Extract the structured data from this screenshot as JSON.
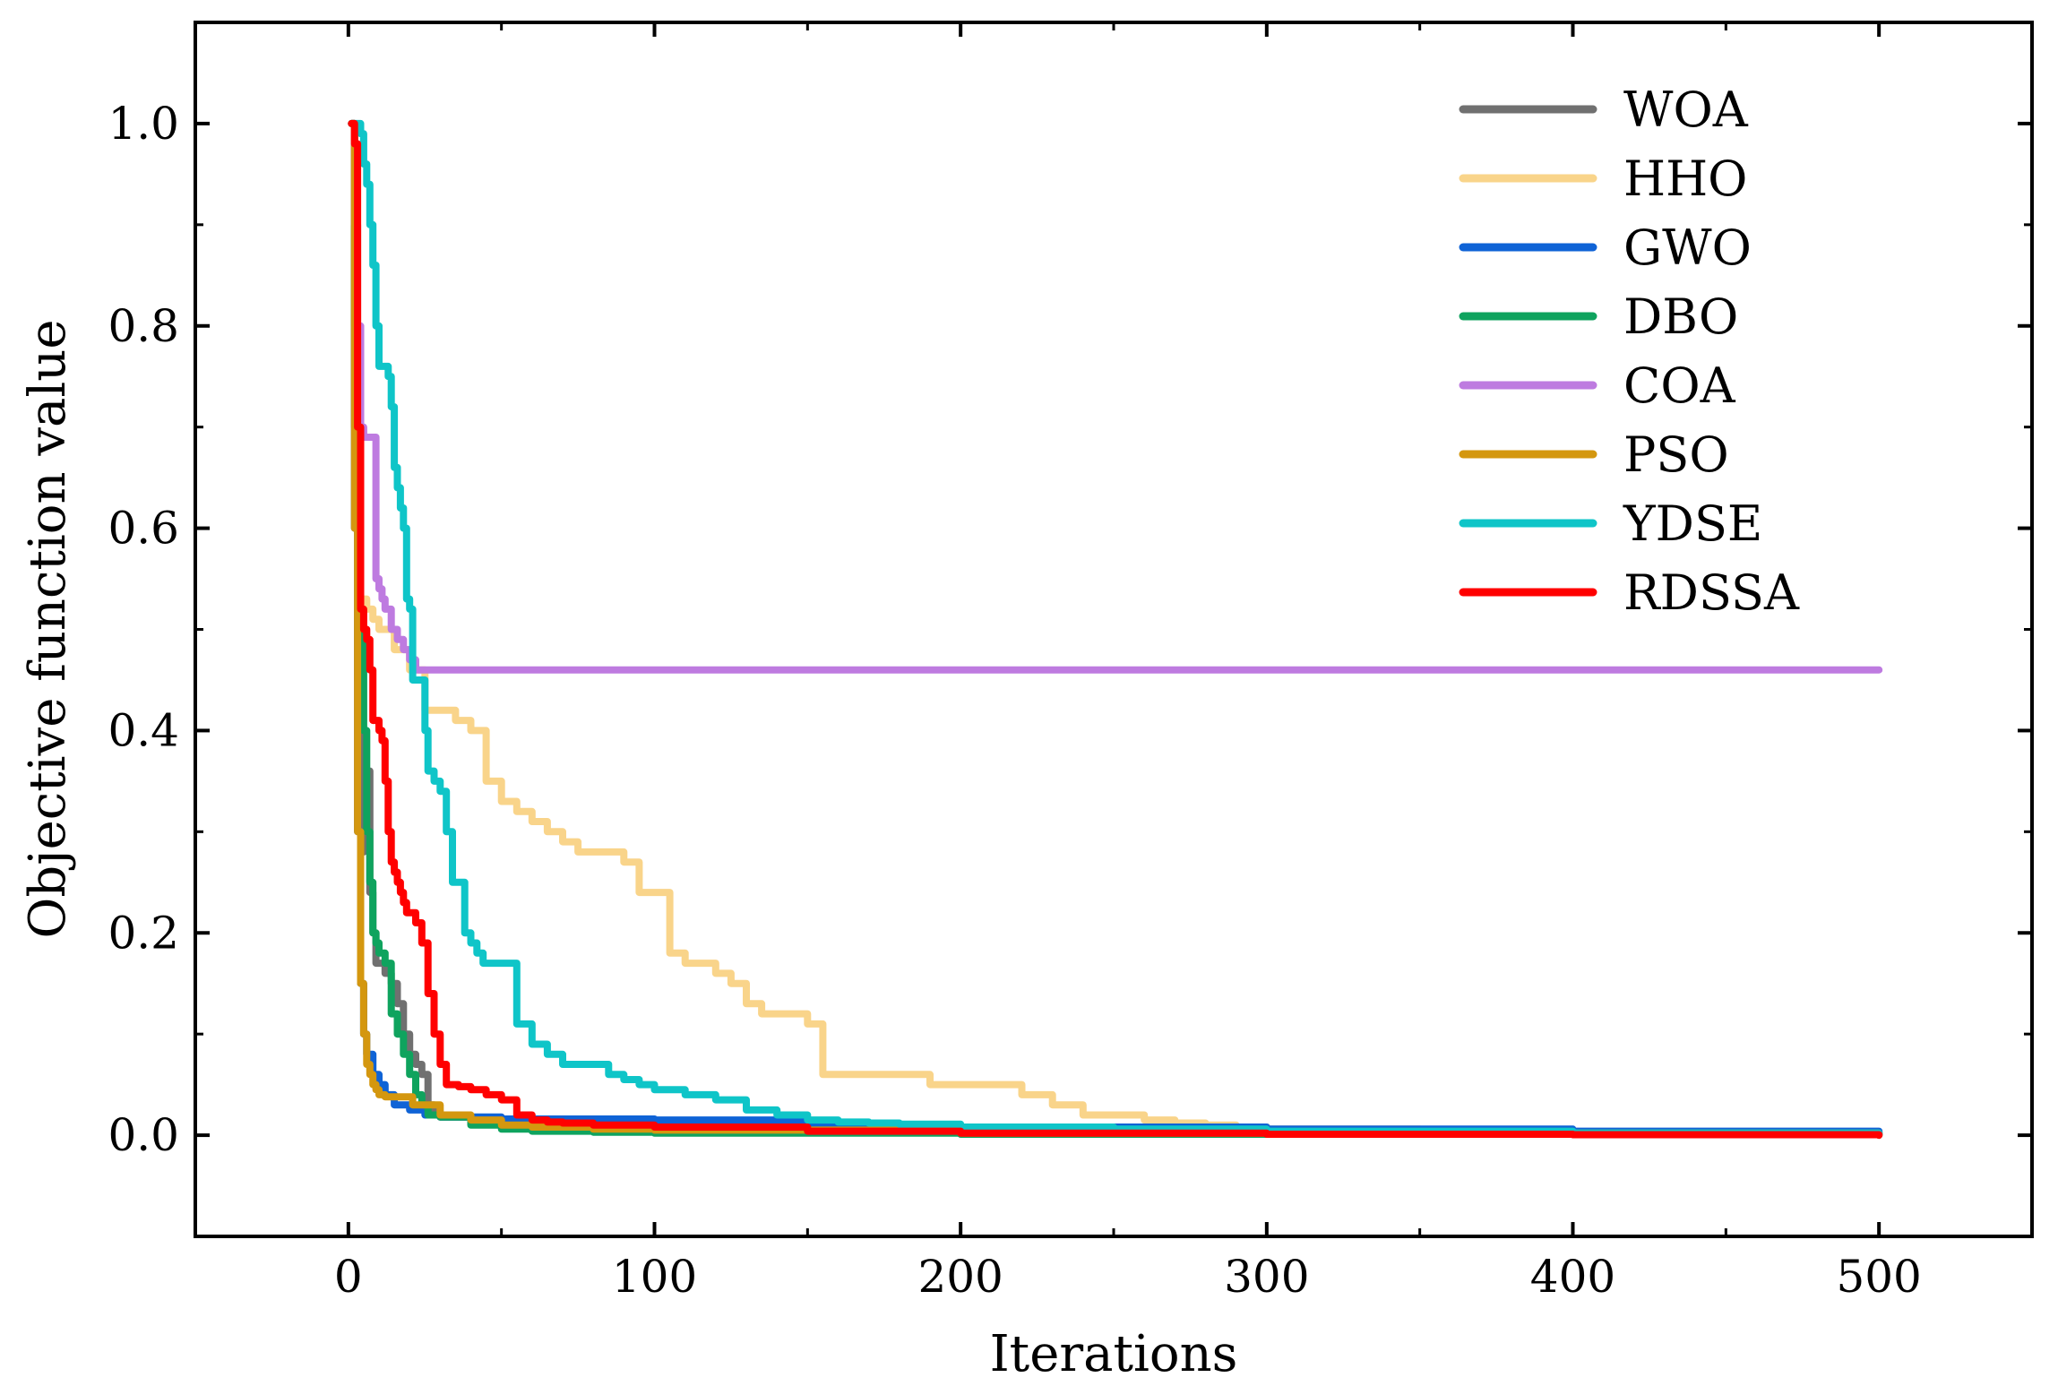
{
  "chart_data": {
    "type": "line",
    "title": "",
    "xlabel": "Iterations",
    "ylabel": "Objective function value",
    "xlim": [
      -50,
      550
    ],
    "ylim": [
      -0.1,
      1.1
    ],
    "xticks": [
      0,
      100,
      200,
      300,
      400,
      500
    ],
    "xtick_labels": [
      "0",
      "100",
      "200",
      "300",
      "400",
      "500"
    ],
    "yticks": [
      0.0,
      0.2,
      0.4,
      0.6,
      0.8,
      1.0
    ],
    "ytick_labels": [
      "0.0",
      "0.2",
      "0.4",
      "0.6",
      "0.8",
      "1.0"
    ],
    "grid": false,
    "legend_position": "top-right",
    "series": [
      {
        "name": "WOA",
        "color": "#707070",
        "x": [
          1,
          2,
          3,
          4,
          5,
          6,
          7,
          8,
          9,
          10,
          12,
          14,
          16,
          18,
          20,
          22,
          24,
          26,
          28,
          30,
          40,
          60,
          80,
          100,
          150,
          200,
          300,
          400,
          500
        ],
        "y": [
          1.0,
          0.7,
          0.45,
          0.28,
          0.36,
          0.36,
          0.24,
          0.2,
          0.17,
          0.17,
          0.16,
          0.15,
          0.13,
          0.1,
          0.08,
          0.07,
          0.06,
          0.03,
          0.02,
          0.018,
          0.015,
          0.012,
          0.01,
          0.008,
          0.005,
          0.003,
          0.002,
          0.001,
          0.0
        ]
      },
      {
        "name": "HHO",
        "color": "#F9D48A",
        "x": [
          1,
          2,
          3,
          4,
          6,
          8,
          10,
          15,
          20,
          25,
          30,
          35,
          40,
          45,
          50,
          55,
          60,
          65,
          70,
          75,
          80,
          85,
          90,
          95,
          100,
          105,
          110,
          115,
          120,
          125,
          130,
          135,
          140,
          150,
          155,
          160,
          170,
          180,
          190,
          200,
          210,
          220,
          230,
          240,
          250,
          260,
          270,
          280,
          290,
          300,
          350,
          400,
          500
        ],
        "y": [
          1.0,
          0.8,
          0.6,
          0.53,
          0.52,
          0.51,
          0.5,
          0.48,
          0.46,
          0.42,
          0.42,
          0.41,
          0.4,
          0.35,
          0.33,
          0.32,
          0.31,
          0.3,
          0.29,
          0.28,
          0.28,
          0.28,
          0.27,
          0.24,
          0.24,
          0.18,
          0.17,
          0.17,
          0.16,
          0.15,
          0.13,
          0.12,
          0.12,
          0.11,
          0.06,
          0.06,
          0.06,
          0.06,
          0.05,
          0.05,
          0.05,
          0.04,
          0.03,
          0.02,
          0.02,
          0.015,
          0.012,
          0.01,
          0.008,
          0.006,
          0.004,
          0.003,
          0.002
        ]
      },
      {
        "name": "GWO",
        "color": "#0F63D6",
        "x": [
          1,
          2,
          3,
          4,
          5,
          6,
          8,
          10,
          12,
          15,
          20,
          25,
          30,
          50,
          100,
          150,
          200,
          300,
          400,
          500
        ],
        "y": [
          1.0,
          0.6,
          0.3,
          0.15,
          0.1,
          0.08,
          0.06,
          0.05,
          0.04,
          0.03,
          0.025,
          0.02,
          0.018,
          0.016,
          0.015,
          0.01,
          0.008,
          0.006,
          0.004,
          0.001
        ]
      },
      {
        "name": "DBO",
        "color": "#0FA35E",
        "x": [
          1,
          2,
          3,
          4,
          5,
          6,
          7,
          8,
          9,
          10,
          12,
          14,
          16,
          18,
          20,
          22,
          24,
          26,
          30,
          40,
          50,
          60,
          80,
          100,
          200,
          500
        ],
        "y": [
          1.0,
          0.8,
          0.6,
          0.5,
          0.4,
          0.3,
          0.25,
          0.2,
          0.19,
          0.18,
          0.17,
          0.12,
          0.1,
          0.08,
          0.06,
          0.04,
          0.03,
          0.02,
          0.018,
          0.01,
          0.006,
          0.004,
          0.003,
          0.002,
          0.001,
          0.0
        ]
      },
      {
        "name": "COA",
        "color": "#BE7BE0",
        "x": [
          1,
          2,
          3,
          4,
          5,
          8,
          9,
          10,
          11,
          12,
          14,
          16,
          18,
          20,
          22,
          25,
          500
        ],
        "y": [
          1.0,
          0.9,
          0.8,
          0.7,
          0.69,
          0.69,
          0.55,
          0.54,
          0.53,
          0.52,
          0.5,
          0.49,
          0.48,
          0.47,
          0.46,
          0.46,
          0.46
        ]
      },
      {
        "name": "PSO",
        "color": "#D4970F",
        "x": [
          1,
          2,
          3,
          4,
          5,
          6,
          7,
          8,
          9,
          10,
          11,
          12,
          20,
          21,
          30,
          40,
          50,
          60,
          80,
          100,
          200,
          500
        ],
        "y": [
          1.0,
          0.6,
          0.3,
          0.15,
          0.1,
          0.07,
          0.06,
          0.05,
          0.045,
          0.04,
          0.04,
          0.038,
          0.038,
          0.03,
          0.02,
          0.015,
          0.01,
          0.008,
          0.006,
          0.005,
          0.002,
          0.0
        ]
      },
      {
        "name": "YDSE",
        "color": "#0FC5C8",
        "x": [
          1,
          3,
          4,
          5,
          6,
          7,
          8,
          9,
          10,
          11,
          12,
          13,
          14,
          15,
          16,
          17,
          18,
          19,
          20,
          21,
          22,
          23,
          24,
          25,
          26,
          28,
          30,
          32,
          34,
          36,
          38,
          40,
          42,
          44,
          46,
          48,
          50,
          55,
          60,
          65,
          70,
          75,
          80,
          85,
          90,
          95,
          100,
          110,
          120,
          130,
          140,
          150,
          160,
          170,
          180,
          200,
          250,
          300,
          400,
          500
        ],
        "y": [
          1.0,
          1.0,
          0.99,
          0.96,
          0.94,
          0.9,
          0.86,
          0.8,
          0.76,
          0.76,
          0.76,
          0.75,
          0.72,
          0.66,
          0.64,
          0.62,
          0.6,
          0.53,
          0.52,
          0.45,
          0.45,
          0.45,
          0.45,
          0.4,
          0.36,
          0.35,
          0.34,
          0.3,
          0.25,
          0.25,
          0.2,
          0.19,
          0.18,
          0.17,
          0.17,
          0.17,
          0.17,
          0.11,
          0.09,
          0.08,
          0.07,
          0.07,
          0.07,
          0.06,
          0.055,
          0.05,
          0.045,
          0.04,
          0.035,
          0.025,
          0.02,
          0.015,
          0.013,
          0.012,
          0.011,
          0.008,
          0.006,
          0.004,
          0.002,
          0.001
        ]
      },
      {
        "name": "RDSSA",
        "color": "#FF0000",
        "x": [
          1,
          2,
          3,
          4,
          5,
          6,
          7,
          8,
          9,
          10,
          11,
          12,
          13,
          14,
          15,
          16,
          17,
          18,
          19,
          20,
          22,
          24,
          26,
          28,
          30,
          32,
          34,
          36,
          38,
          40,
          45,
          50,
          55,
          60,
          65,
          70,
          80,
          100,
          150,
          200,
          300,
          400,
          500
        ],
        "y": [
          1.0,
          0.98,
          0.7,
          0.52,
          0.5,
          0.49,
          0.46,
          0.41,
          0.41,
          0.4,
          0.39,
          0.35,
          0.3,
          0.27,
          0.26,
          0.25,
          0.24,
          0.23,
          0.22,
          0.22,
          0.21,
          0.19,
          0.14,
          0.1,
          0.07,
          0.05,
          0.05,
          0.048,
          0.048,
          0.045,
          0.04,
          0.035,
          0.02,
          0.015,
          0.013,
          0.012,
          0.01,
          0.008,
          0.004,
          0.002,
          0.001,
          0.0005,
          0.0
        ]
      }
    ]
  }
}
